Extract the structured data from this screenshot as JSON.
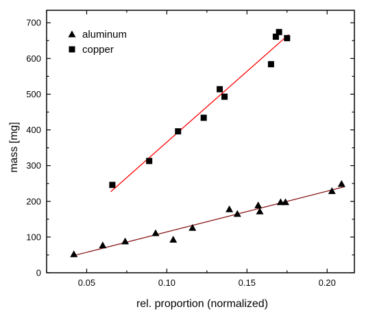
{
  "chart_data": {
    "type": "scatter",
    "title": "",
    "xlabel": "rel. proportion (normalized)",
    "ylabel": "mass [mg]",
    "xlim": [
      0.025,
      0.217
    ],
    "ylim": [
      0,
      735
    ],
    "xticks": [
      0.05,
      0.1,
      0.15,
      0.2
    ],
    "xtick_labels": [
      "0.05",
      "0.10",
      "0.15",
      "0.20"
    ],
    "yticks": [
      0,
      100,
      200,
      300,
      400,
      500,
      600,
      700
    ],
    "ytick_labels": [
      "0",
      "100",
      "200",
      "300",
      "400",
      "500",
      "600",
      "700"
    ],
    "grid": false,
    "legend_position": "top-left",
    "series": [
      {
        "name": "aluminum",
        "marker": "triangle",
        "color": "#000000",
        "points": [
          [
            0.042,
            52
          ],
          [
            0.06,
            77
          ],
          [
            0.074,
            88
          ],
          [
            0.093,
            111
          ],
          [
            0.104,
            93
          ],
          [
            0.116,
            126
          ],
          [
            0.139,
            178
          ],
          [
            0.144,
            165
          ],
          [
            0.157,
            189
          ],
          [
            0.158,
            172
          ],
          [
            0.171,
            198
          ],
          [
            0.174,
            198
          ],
          [
            0.203,
            229
          ],
          [
            0.209,
            249
          ]
        ],
        "fit": {
          "x": [
            0.041,
            0.211
          ],
          "y": [
            47,
            241
          ],
          "color": "#8b1a1a"
        }
      },
      {
        "name": "copper",
        "marker": "square",
        "color": "#000000",
        "points": [
          [
            0.066,
            246
          ],
          [
            0.089,
            313
          ],
          [
            0.107,
            396
          ],
          [
            0.123,
            434
          ],
          [
            0.133,
            514
          ],
          [
            0.136,
            493
          ],
          [
            0.165,
            584
          ],
          [
            0.168,
            661
          ],
          [
            0.17,
            674
          ],
          [
            0.175,
            657
          ]
        ],
        "fit": {
          "x": [
            0.065,
            0.176
          ],
          "y": [
            227,
            667
          ],
          "color": "#ff0000"
        }
      }
    ]
  }
}
